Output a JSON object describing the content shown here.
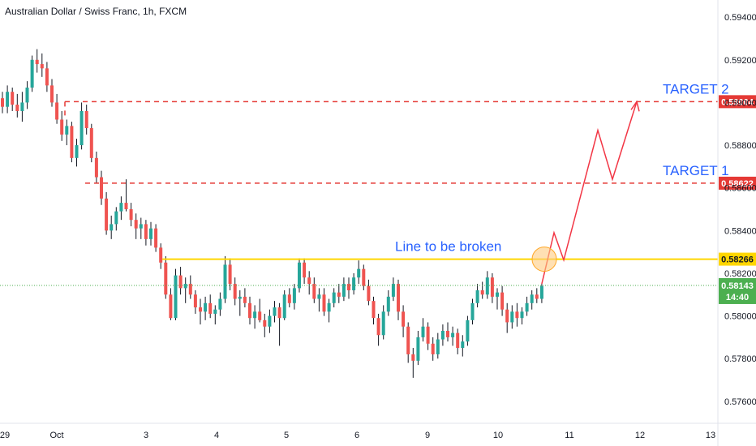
{
  "header": {
    "symbol": "Australian Dollar / Swiss Franc, 1h, FXCM"
  },
  "chart_data": {
    "type": "candlestick",
    "colors": {
      "up": "#26a69a",
      "down": "#ef5350",
      "wick": "#131722",
      "resistance": "#ffd600",
      "target": "#e53935",
      "projection": "#f23645",
      "annotation": "#2962ff",
      "last_price": "#4caf50"
    },
    "y_axis": {
      "range": [
        0.5755,
        0.5945
      ],
      "ticks": [
        "0.59400",
        "0.59200",
        "0.59000",
        "0.58800",
        "0.58600",
        "0.58400",
        "0.58200",
        "0.58000",
        "0.57800",
        "0.57600"
      ]
    },
    "x_axis": {
      "ticks": [
        "29",
        "Oct",
        "3",
        "4",
        "5",
        "6",
        "9",
        "10",
        "11",
        "12",
        "13"
      ]
    },
    "candles_ohlc_hourly": [
      [
        0.5902,
        0.5905,
        0.5895,
        0.5898
      ],
      [
        0.5898,
        0.5908,
        0.5895,
        0.5905
      ],
      [
        0.5905,
        0.5907,
        0.5896,
        0.5899
      ],
      [
        0.5899,
        0.5904,
        0.5893,
        0.5896
      ],
      [
        0.5896,
        0.5905,
        0.5891,
        0.59
      ],
      [
        0.59,
        0.591,
        0.5897,
        0.5907
      ],
      [
        0.5907,
        0.5922,
        0.5905,
        0.592
      ],
      [
        0.592,
        0.5925,
        0.5914,
        0.5918
      ],
      [
        0.5918,
        0.5923,
        0.5912,
        0.5916
      ],
      [
        0.5916,
        0.5919,
        0.5905,
        0.5908
      ],
      [
        0.5908,
        0.5911,
        0.5898,
        0.59
      ],
      [
        0.59,
        0.5904,
        0.589,
        0.5892
      ],
      [
        0.5892,
        0.5896,
        0.5882,
        0.5885
      ],
      [
        0.5885,
        0.5892,
        0.588,
        0.5889
      ],
      [
        0.5889,
        0.5891,
        0.5872,
        0.5874
      ],
      [
        0.5874,
        0.5883,
        0.587,
        0.588
      ],
      [
        0.588,
        0.59,
        0.5878,
        0.5896
      ],
      [
        0.5896,
        0.5899,
        0.5885,
        0.5888
      ],
      [
        0.5888,
        0.589,
        0.5872,
        0.5874
      ],
      [
        0.5874,
        0.5877,
        0.5862,
        0.5865
      ],
      [
        0.5865,
        0.5868,
        0.5852,
        0.5855
      ],
      [
        0.5855,
        0.5858,
        0.5838,
        0.584
      ],
      [
        0.584,
        0.5847,
        0.5836,
        0.5843
      ],
      [
        0.5843,
        0.5851,
        0.584,
        0.5849
      ],
      [
        0.5849,
        0.5856,
        0.5845,
        0.5853
      ],
      [
        0.5853,
        0.5864,
        0.5849,
        0.585
      ],
      [
        0.585,
        0.5853,
        0.5842,
        0.5845
      ],
      [
        0.5845,
        0.5848,
        0.5836,
        0.5841
      ],
      [
        0.5841,
        0.5846,
        0.5836,
        0.5843
      ],
      [
        0.5843,
        0.5845,
        0.5833,
        0.5836
      ],
      [
        0.5836,
        0.5844,
        0.5833,
        0.5841
      ],
      [
        0.5841,
        0.5843,
        0.583,
        0.5832
      ],
      [
        0.5832,
        0.5834,
        0.5822,
        0.5825
      ],
      [
        0.5825,
        0.5828,
        0.5808,
        0.581
      ],
      [
        0.581,
        0.5813,
        0.5798,
        0.5799
      ],
      [
        0.5799,
        0.5822,
        0.5798,
        0.5819
      ],
      [
        0.5819,
        0.5823,
        0.581,
        0.5813
      ],
      [
        0.5813,
        0.5818,
        0.5806,
        0.5815
      ],
      [
        0.5815,
        0.5819,
        0.5808,
        0.581
      ],
      [
        0.581,
        0.5812,
        0.5801,
        0.5804
      ],
      [
        0.5804,
        0.5808,
        0.5796,
        0.5802
      ],
      [
        0.5802,
        0.5809,
        0.5798,
        0.5806
      ],
      [
        0.5806,
        0.581,
        0.5799,
        0.5801
      ],
      [
        0.5801,
        0.5805,
        0.5796,
        0.5803
      ],
      [
        0.5803,
        0.5811,
        0.58,
        0.5808
      ],
      [
        0.5808,
        0.5828,
        0.5806,
        0.5824
      ],
      [
        0.5824,
        0.5827,
        0.5812,
        0.5815
      ],
      [
        0.5815,
        0.5818,
        0.5805,
        0.5808
      ],
      [
        0.5808,
        0.5812,
        0.58,
        0.5809
      ],
      [
        0.5809,
        0.5813,
        0.5804,
        0.5806
      ],
      [
        0.5806,
        0.5809,
        0.5796,
        0.5799
      ],
      [
        0.5799,
        0.5805,
        0.5794,
        0.5802
      ],
      [
        0.5802,
        0.5808,
        0.5797,
        0.5798
      ],
      [
        0.5798,
        0.5801,
        0.579,
        0.5795
      ],
      [
        0.5795,
        0.5803,
        0.5792,
        0.58
      ],
      [
        0.58,
        0.5807,
        0.5797,
        0.5804
      ],
      [
        0.5804,
        0.5806,
        0.5786,
        0.5799
      ],
      [
        0.5799,
        0.5812,
        0.5798,
        0.581
      ],
      [
        0.581,
        0.5813,
        0.5804,
        0.5806
      ],
      [
        0.5806,
        0.5815,
        0.5803,
        0.5813
      ],
      [
        0.5813,
        0.5827,
        0.5811,
        0.5825
      ],
      [
        0.5825,
        0.5827,
        0.5815,
        0.5818
      ],
      [
        0.5818,
        0.5821,
        0.581,
        0.5815
      ],
      [
        0.5815,
        0.5818,
        0.5806,
        0.5808
      ],
      [
        0.5808,
        0.5813,
        0.5802,
        0.581
      ],
      [
        0.581,
        0.5813,
        0.58,
        0.5802
      ],
      [
        0.5802,
        0.5808,
        0.5797,
        0.5806
      ],
      [
        0.5806,
        0.5813,
        0.5804,
        0.5811
      ],
      [
        0.5811,
        0.5815,
        0.5806,
        0.5809
      ],
      [
        0.5809,
        0.5818,
        0.5807,
        0.5815
      ],
      [
        0.5815,
        0.5818,
        0.5808,
        0.5812
      ],
      [
        0.5812,
        0.582,
        0.581,
        0.5818
      ],
      [
        0.5818,
        0.5826,
        0.5815,
        0.5822
      ],
      [
        0.5822,
        0.5824,
        0.5812,
        0.5814
      ],
      [
        0.5814,
        0.5817,
        0.5805,
        0.5807
      ],
      [
        0.5807,
        0.5809,
        0.5796,
        0.5799
      ],
      [
        0.5799,
        0.5801,
        0.5786,
        0.5791
      ],
      [
        0.5791,
        0.5805,
        0.5789,
        0.5802
      ],
      [
        0.5802,
        0.5812,
        0.58,
        0.5809
      ],
      [
        0.5809,
        0.5818,
        0.5807,
        0.5815
      ],
      [
        0.5815,
        0.5817,
        0.5798,
        0.5802
      ],
      [
        0.5802,
        0.5805,
        0.579,
        0.5795
      ],
      [
        0.5795,
        0.5797,
        0.5778,
        0.5782
      ],
      [
        0.5782,
        0.5785,
        0.5771,
        0.5779
      ],
      [
        0.5779,
        0.5793,
        0.5777,
        0.579
      ],
      [
        0.579,
        0.5799,
        0.5788,
        0.5795
      ],
      [
        0.5795,
        0.5797,
        0.5784,
        0.5787
      ],
      [
        0.5787,
        0.579,
        0.5779,
        0.5782
      ],
      [
        0.5782,
        0.5792,
        0.578,
        0.5789
      ],
      [
        0.5789,
        0.5796,
        0.5786,
        0.5793
      ],
      [
        0.5793,
        0.5797,
        0.5788,
        0.579
      ],
      [
        0.579,
        0.5795,
        0.5786,
        0.5792
      ],
      [
        0.5792,
        0.5794,
        0.5782,
        0.5785
      ],
      [
        0.5785,
        0.5791,
        0.5781,
        0.5788
      ],
      [
        0.5788,
        0.58,
        0.5786,
        0.5798
      ],
      [
        0.5798,
        0.5808,
        0.5796,
        0.5806
      ],
      [
        0.5806,
        0.5815,
        0.5804,
        0.5812
      ],
      [
        0.5812,
        0.5816,
        0.5808,
        0.581
      ],
      [
        0.581,
        0.5821,
        0.5808,
        0.5818
      ],
      [
        0.5818,
        0.582,
        0.5806,
        0.5809
      ],
      [
        0.5809,
        0.5813,
        0.5803,
        0.5811
      ],
      [
        0.5811,
        0.5814,
        0.58,
        0.5803
      ],
      [
        0.5803,
        0.5806,
        0.5792,
        0.5797
      ],
      [
        0.5797,
        0.5805,
        0.5794,
        0.5802
      ],
      [
        0.5802,
        0.5806,
        0.5795,
        0.5799
      ],
      [
        0.5799,
        0.5804,
        0.5796,
        0.5802
      ],
      [
        0.5802,
        0.5809,
        0.58,
        0.5806
      ],
      [
        0.5806,
        0.5812,
        0.5803,
        0.581
      ],
      [
        0.581,
        0.5813,
        0.5806,
        0.5808
      ],
      [
        0.5808,
        0.5815,
        0.5806,
        0.5814
      ]
    ],
    "levels": [
      {
        "name": "resistance",
        "price": 0.58266,
        "label": "0.58266"
      },
      {
        "name": "target1",
        "price": 0.58622,
        "label": "0.58622"
      },
      {
        "name": "target2",
        "price": 0.59004,
        "label": "0.59004"
      }
    ],
    "last_price": {
      "value": 0.58143,
      "label": "0.58143",
      "countdown": "14:40"
    },
    "annotations": {
      "resistance_text": "Line to be broken",
      "target1_text": "TARGET 1",
      "target2_text": "TARGET 2"
    },
    "projection_path": [
      [
        0.5815
      ],
      [
        0.5839
      ],
      [
        0.58262
      ],
      [
        0.5887
      ],
      [
        0.5864
      ],
      [
        0.59004
      ]
    ]
  }
}
